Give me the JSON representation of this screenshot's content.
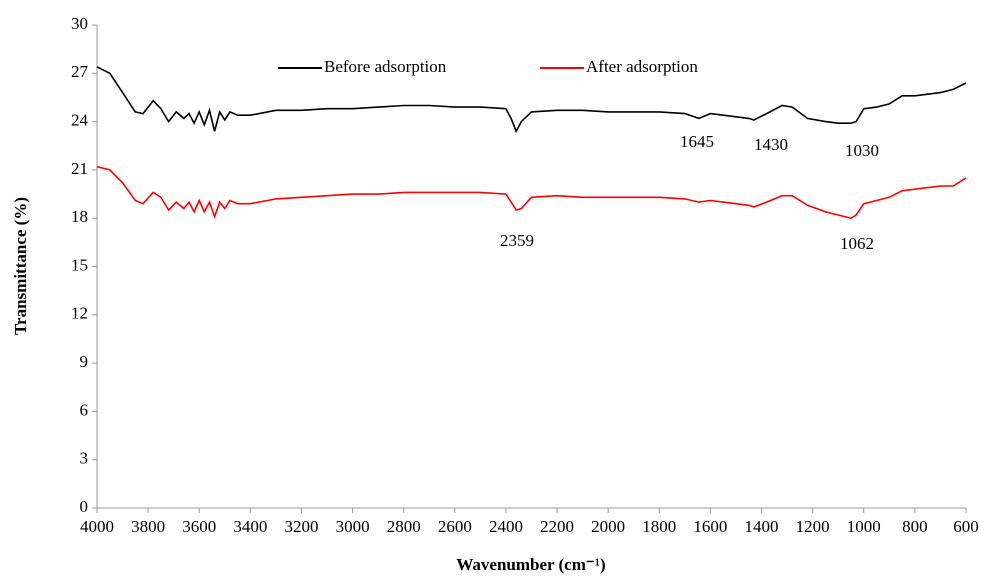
{
  "chart_data": {
    "type": "line",
    "xlabel": "Wavenumber (cm⁻¹)",
    "ylabel": "Transmittance (%)",
    "x": [
      4000,
      3950,
      3900,
      3850,
      3820,
      3780,
      3750,
      3720,
      3690,
      3660,
      3640,
      3620,
      3600,
      3580,
      3560,
      3540,
      3520,
      3500,
      3480,
      3450,
      3400,
      3300,
      3200,
      3100,
      3000,
      2900,
      2800,
      2700,
      2600,
      2500,
      2400,
      2380,
      2360,
      2340,
      2300,
      2200,
      2100,
      2000,
      1900,
      1800,
      1700,
      1645,
      1600,
      1550,
      1500,
      1450,
      1430,
      1380,
      1320,
      1280,
      1220,
      1150,
      1100,
      1050,
      1030,
      1000,
      950,
      900,
      850,
      800,
      700,
      650,
      600
    ],
    "series": [
      {
        "name": "Before adsorption",
        "color": "#000000",
        "values": [
          27.4,
          27.0,
          25.8,
          24.6,
          24.5,
          25.3,
          24.8,
          24.0,
          24.6,
          24.2,
          24.5,
          23.9,
          24.6,
          23.8,
          24.7,
          23.4,
          24.6,
          24.1,
          24.6,
          24.4,
          24.4,
          24.7,
          24.7,
          24.8,
          24.8,
          24.9,
          25.0,
          25.0,
          24.9,
          24.9,
          24.8,
          24.2,
          23.4,
          24.0,
          24.6,
          24.7,
          24.7,
          24.6,
          24.6,
          24.6,
          24.5,
          24.2,
          24.5,
          24.4,
          24.3,
          24.2,
          24.1,
          24.5,
          25.0,
          24.9,
          24.2,
          24.0,
          23.9,
          23.9,
          24.0,
          24.8,
          24.9,
          25.1,
          25.6,
          25.6,
          25.8,
          26.0,
          26.4
        ]
      },
      {
        "name": "After adsorption",
        "color": "#ff0000",
        "values": [
          21.2,
          21.0,
          20.2,
          19.1,
          18.9,
          19.6,
          19.3,
          18.5,
          19.0,
          18.6,
          19.0,
          18.4,
          19.1,
          18.4,
          19.0,
          18.1,
          19.0,
          18.6,
          19.1,
          18.9,
          18.9,
          19.2,
          19.3,
          19.4,
          19.5,
          19.5,
          19.6,
          19.6,
          19.6,
          19.6,
          19.5,
          19.0,
          18.5,
          18.6,
          19.3,
          19.4,
          19.3,
          19.3,
          19.3,
          19.3,
          19.2,
          19.0,
          19.1,
          19.0,
          18.9,
          18.8,
          18.7,
          19.0,
          19.4,
          19.4,
          18.8,
          18.4,
          18.2,
          18.0,
          18.2,
          18.9,
          19.1,
          19.3,
          19.7,
          19.8,
          20.0,
          20.0,
          20.5
        ]
      }
    ],
    "xlim": [
      4000,
      600
    ],
    "xticks": [
      4000,
      3800,
      3600,
      3400,
      3200,
      3000,
      2800,
      2600,
      2400,
      2200,
      2000,
      1800,
      1600,
      1400,
      1200,
      1000,
      800,
      600
    ],
    "ylim": [
      0,
      30
    ],
    "yticks": [
      0,
      3,
      6,
      9,
      12,
      15,
      18,
      21,
      24,
      27,
      30
    ],
    "grid": false,
    "legend": "top",
    "annotations": [
      "1645",
      "1430",
      "1030",
      "2359",
      "1062"
    ]
  }
}
